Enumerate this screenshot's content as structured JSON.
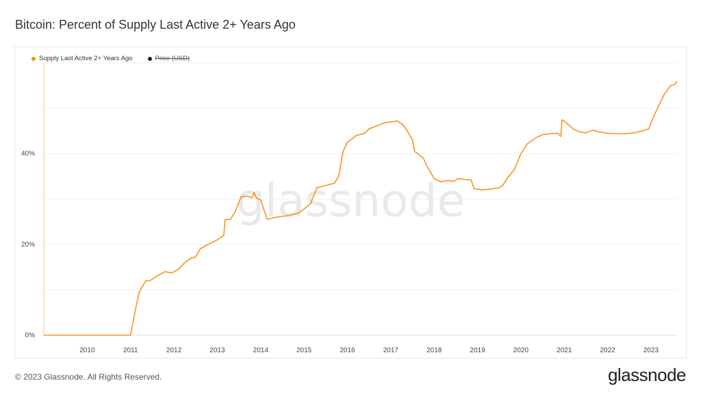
{
  "title": "Bitcoin: Percent of Supply Last Active 2+ Years Ago",
  "legend": [
    {
      "label": "Supply Last Active 2+ Years Ago",
      "color": "#f7931a",
      "enabled": true
    },
    {
      "label": "Price (USD)",
      "color": "#222222",
      "enabled": false
    }
  ],
  "watermark": "glassnode",
  "footer": "© 2023 Glassnode. All Rights Reserved.",
  "brand": "glassnode",
  "chart_data": {
    "type": "line",
    "xlabel": "",
    "ylabel": "",
    "x_ticks": [
      "2010",
      "2011",
      "2012",
      "2013",
      "2014",
      "2015",
      "2016",
      "2017",
      "2018",
      "2019",
      "2020",
      "2021",
      "2022",
      "2023"
    ],
    "y_ticks": [
      "0%",
      "20%",
      "40%"
    ],
    "xlim": [
      2009.0,
      2023.6
    ],
    "ylim": [
      0,
      60
    ],
    "grid": true,
    "legend_position": "top-left",
    "series": [
      {
        "name": "Supply Last Active 2+ Years Ago",
        "color": "#f7931a",
        "points": [
          [
            2009.0,
            0
          ],
          [
            2011.0,
            0
          ],
          [
            2011.1,
            5
          ],
          [
            2011.2,
            9.5
          ],
          [
            2011.35,
            12
          ],
          [
            2011.45,
            12
          ],
          [
            2011.6,
            13
          ],
          [
            2011.8,
            14
          ],
          [
            2011.95,
            13.7
          ],
          [
            2012.1,
            14.5
          ],
          [
            2012.25,
            16
          ],
          [
            2012.4,
            17
          ],
          [
            2012.5,
            17.2
          ],
          [
            2012.6,
            19
          ],
          [
            2012.75,
            19.8
          ],
          [
            2012.9,
            20.5
          ],
          [
            2013.0,
            21
          ],
          [
            2013.15,
            22
          ],
          [
            2013.18,
            25.5
          ],
          [
            2013.3,
            25.5
          ],
          [
            2013.4,
            27
          ],
          [
            2013.55,
            30.5
          ],
          [
            2013.7,
            30.6
          ],
          [
            2013.8,
            30.3
          ],
          [
            2013.85,
            31.5
          ],
          [
            2013.9,
            30.2
          ],
          [
            2014.0,
            29.8
          ],
          [
            2014.15,
            25.5
          ],
          [
            2014.35,
            26
          ],
          [
            2014.6,
            26.3
          ],
          [
            2014.85,
            26.8
          ],
          [
            2015.0,
            27.8
          ],
          [
            2015.15,
            29
          ],
          [
            2015.3,
            32.5
          ],
          [
            2015.5,
            33
          ],
          [
            2015.7,
            33.5
          ],
          [
            2015.8,
            35
          ],
          [
            2015.9,
            40.5
          ],
          [
            2016.0,
            42.5
          ],
          [
            2016.2,
            44
          ],
          [
            2016.4,
            44.5
          ],
          [
            2016.5,
            45.5
          ],
          [
            2016.7,
            46.2
          ],
          [
            2016.85,
            46.8
          ],
          [
            2017.0,
            47
          ],
          [
            2017.15,
            47.2
          ],
          [
            2017.25,
            46.6
          ],
          [
            2017.35,
            45.5
          ],
          [
            2017.5,
            43
          ],
          [
            2017.55,
            40.5
          ],
          [
            2017.75,
            39
          ],
          [
            2017.85,
            37
          ],
          [
            2018.0,
            34.5
          ],
          [
            2018.15,
            33.8
          ],
          [
            2018.3,
            34.1
          ],
          [
            2018.45,
            33.9
          ],
          [
            2018.55,
            34.5
          ],
          [
            2018.7,
            34.3
          ],
          [
            2018.85,
            34.2
          ],
          [
            2018.92,
            32.3
          ],
          [
            2019.1,
            32
          ],
          [
            2019.3,
            32.2
          ],
          [
            2019.5,
            32.5
          ],
          [
            2019.58,
            33
          ],
          [
            2019.7,
            34.8
          ],
          [
            2019.85,
            36.5
          ],
          [
            2020.0,
            40
          ],
          [
            2020.15,
            42.2
          ],
          [
            2020.35,
            43.5
          ],
          [
            2020.5,
            44.2
          ],
          [
            2020.7,
            44.4
          ],
          [
            2020.85,
            44.5
          ],
          [
            2020.92,
            43.8
          ],
          [
            2020.95,
            47.5
          ],
          [
            2021.05,
            46.8
          ],
          [
            2021.2,
            45.5
          ],
          [
            2021.35,
            44.8
          ],
          [
            2021.5,
            44.6
          ],
          [
            2021.65,
            45.2
          ],
          [
            2021.8,
            44.8
          ],
          [
            2022.0,
            44.5
          ],
          [
            2022.2,
            44.4
          ],
          [
            2022.4,
            44.4
          ],
          [
            2022.6,
            44.6
          ],
          [
            2022.8,
            45
          ],
          [
            2022.95,
            45.5
          ],
          [
            2023.05,
            48
          ],
          [
            2023.15,
            50
          ],
          [
            2023.3,
            53
          ],
          [
            2023.45,
            55
          ],
          [
            2023.55,
            55.3
          ],
          [
            2023.6,
            56
          ]
        ]
      }
    ]
  }
}
